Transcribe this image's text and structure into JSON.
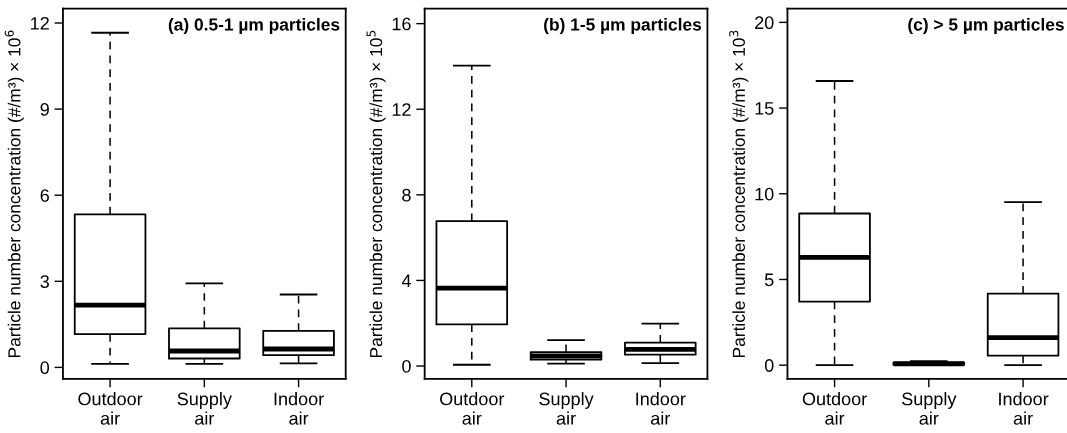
{
  "chart_data": [
    {
      "type": "box",
      "title": "(a) 0.5-1 µm particles",
      "ylabel": "Particle number concentration (#/m³) × 10$^{6}$",
      "categories": [
        "Outdoor\nair",
        "Supply\nair",
        "Indoor\nair"
      ],
      "ylim": [
        -0.4,
        12.5
      ],
      "yticks": [
        0,
        3,
        6,
        9,
        12
      ],
      "grid": false,
      "color": "#000000",
      "boxes": [
        {
          "low": 0.12,
          "q1": 1.16,
          "median": 2.17,
          "q3": 5.33,
          "high": 11.66
        },
        {
          "low": 0.12,
          "q1": 0.31,
          "median": 0.57,
          "q3": 1.36,
          "high": 2.93
        },
        {
          "low": 0.14,
          "q1": 0.43,
          "median": 0.64,
          "q3": 1.27,
          "high": 2.54
        }
      ]
    },
    {
      "type": "box",
      "title": "(b) 1-5 µm particles",
      "ylabel": "Particle number concentration (#/m³) × 10$^{5}$",
      "categories": [
        "Outdoor\nair",
        "Supply\nair",
        "Indoor\nair"
      ],
      "ylim": [
        -0.6,
        16.7
      ],
      "yticks": [
        0,
        4,
        8,
        12,
        16
      ],
      "grid": false,
      "color": "#000000",
      "boxes": [
        {
          "low": 0.06,
          "q1": 1.95,
          "median": 3.64,
          "q3": 6.77,
          "high": 14.04
        },
        {
          "low": 0.11,
          "q1": 0.3,
          "median": 0.47,
          "q3": 0.65,
          "high": 1.21
        },
        {
          "low": 0.14,
          "q1": 0.53,
          "median": 0.78,
          "q3": 1.09,
          "high": 1.98
        }
      ]
    },
    {
      "type": "box",
      "title": "(c) > 5 µm particles",
      "ylabel": "Particle number concentration (#/m³) × 10$^{3}$",
      "categories": [
        "Outdoor\nair",
        "Supply\nair",
        "Indoor\nair"
      ],
      "ylim": [
        -0.8,
        20.8
      ],
      "yticks": [
        0,
        5,
        10,
        15,
        20
      ],
      "grid": false,
      "color": "#000000",
      "boxes": [
        {
          "low": 0.0,
          "q1": 3.71,
          "median": 6.29,
          "q3": 8.85,
          "high": 16.58
        },
        {
          "low": 0.0,
          "q1": 0.03,
          "median": 0.08,
          "q3": 0.15,
          "high": 0.23
        },
        {
          "low": 0.0,
          "q1": 0.56,
          "median": 1.61,
          "q3": 4.17,
          "high": 9.51
        }
      ]
    }
  ]
}
